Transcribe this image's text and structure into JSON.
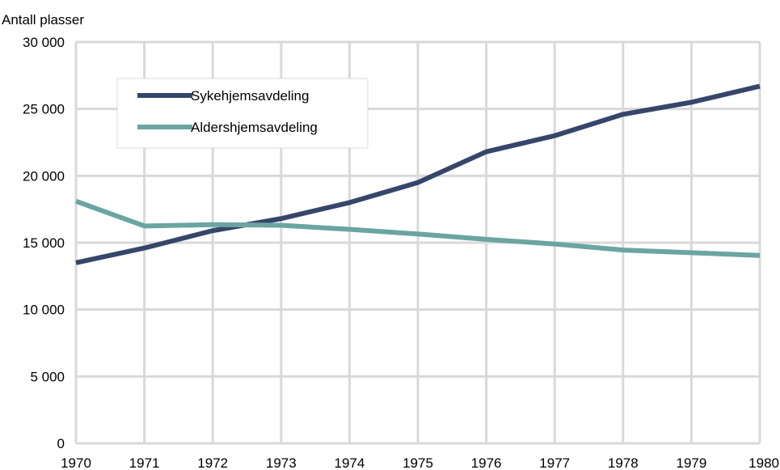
{
  "chart_data": {
    "type": "line",
    "ylabel": "Antall plasser",
    "x": [
      1970,
      1971,
      1972,
      1973,
      1974,
      1975,
      1976,
      1977,
      1978,
      1979,
      1980
    ],
    "ylim": [
      0,
      30000
    ],
    "yticks": [
      0,
      5000,
      10000,
      15000,
      20000,
      25000,
      30000
    ],
    "ytick_labels": [
      "0",
      "5 000",
      "10 000",
      "15 000",
      "20 000",
      "25 000",
      "30 000"
    ],
    "xtick_labels": [
      "1970",
      "1971",
      "1972",
      "1973",
      "1974",
      "1975",
      "1976",
      "1977",
      "1978",
      "1979",
      "1980"
    ],
    "grid": true,
    "legend_position": "top-left",
    "series": [
      {
        "name": "Sykehjemsavdeling",
        "color": "#36466a",
        "values": [
          13500,
          14600,
          15900,
          16800,
          18000,
          19500,
          21800,
          23000,
          24600,
          25500,
          26700
        ]
      },
      {
        "name": "Aldershjemsavdeling",
        "color": "#6aa5a2",
        "values": [
          18100,
          16250,
          16350,
          16300,
          16000,
          15650,
          15250,
          14900,
          14450,
          14250,
          14050
        ]
      }
    ]
  }
}
